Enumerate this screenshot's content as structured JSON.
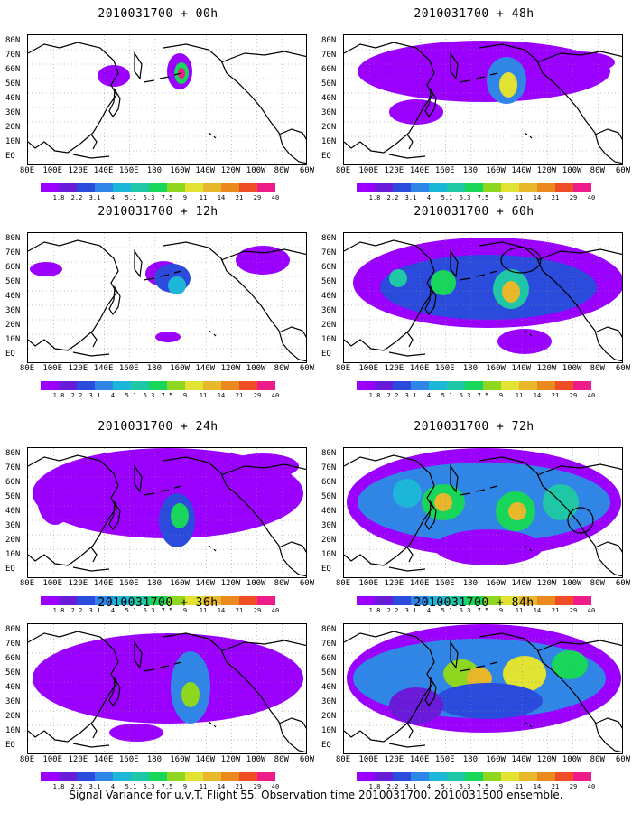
{
  "figure": {
    "caption": "Signal Variance for u,v,T. Flight 55. Observation time 2010031700. 2010031500 ensemble."
  },
  "axes": {
    "lat_labels": [
      "80N",
      "70N",
      "60N",
      "50N",
      "40N",
      "30N",
      "20N",
      "10N",
      "EQ"
    ],
    "lon_labels": [
      "80E",
      "100E",
      "120E",
      "140E",
      "160E",
      "180",
      "160W",
      "140W",
      "120W",
      "100W",
      "80W",
      "60W"
    ]
  },
  "colorbar": {
    "labels": [
      "1.8",
      "2.2",
      "3.1",
      "4",
      "5.1",
      "6.3",
      "7.5",
      "9",
      "11",
      "14",
      "21",
      "29",
      "40"
    ],
    "colors": [
      "#9b00ff",
      "#6a1bd9",
      "#2a4bdc",
      "#2f86e6",
      "#1cb6d9",
      "#1ec7a6",
      "#18d65a",
      "#8fd61e",
      "#e2e232",
      "#e8b82a",
      "#ea8a1e",
      "#ef4d26",
      "#ee1c8a"
    ]
  },
  "panels": [
    {
      "title": "2010031700 + 00h",
      "lead": 0
    },
    {
      "title": "2010031700 + 48h",
      "lead": 48
    },
    {
      "title": "2010031700 + 12h",
      "lead": 12
    },
    {
      "title": "2010031700 + 60h",
      "lead": 60
    },
    {
      "title": "2010031700 + 24h",
      "lead": 24
    },
    {
      "title": "2010031700 + 72h",
      "lead": 72
    },
    {
      "title": "2010031700 + 36h",
      "lead": 36
    },
    {
      "title": "2010031700 + 84h",
      "lead": 84
    }
  ]
}
